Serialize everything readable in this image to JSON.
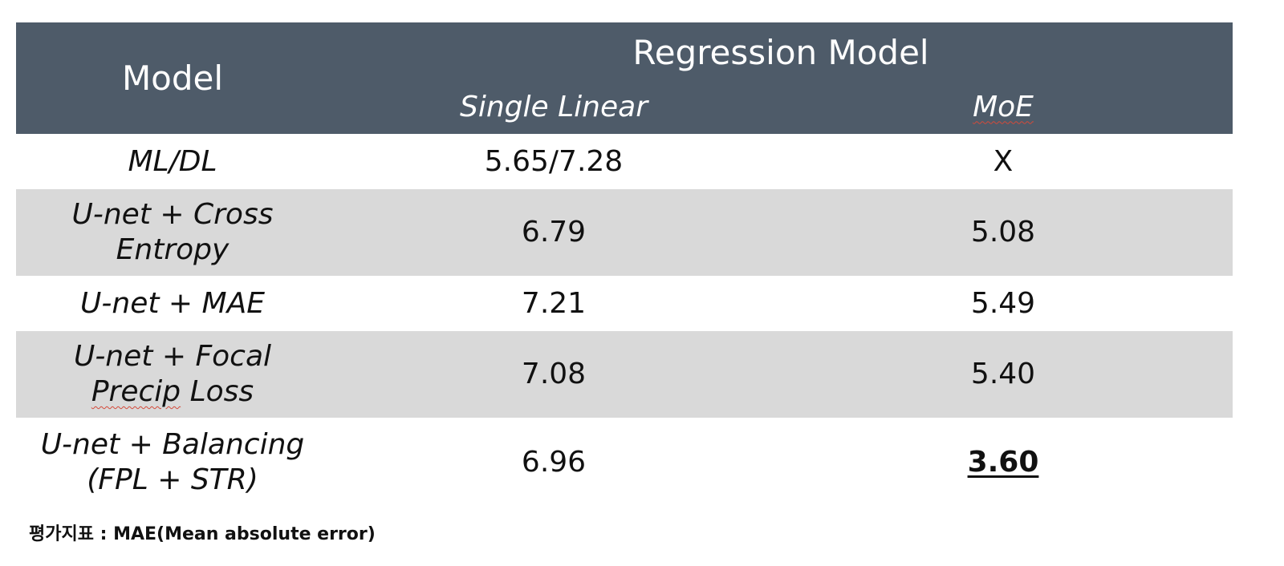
{
  "table": {
    "header": {
      "model_label": "Model",
      "group_label": "Regression Model",
      "sub_single": "Single Linear",
      "sub_moe": "MoE"
    },
    "rows": [
      {
        "model_line1": "ML/DL",
        "model_line2": "",
        "single": "5.65/7.28",
        "moe": "X",
        "shaded": false
      },
      {
        "model_line1": "U-net + Cross",
        "model_line2": "Entropy",
        "single": "6.79",
        "moe": "5.08",
        "shaded": true
      },
      {
        "model_line1": "U-net + MAE",
        "model_line2": "",
        "single": "7.21",
        "moe": "5.49",
        "shaded": false
      },
      {
        "model_line1": "U-net + Focal",
        "model_line2_a": "Precip",
        "model_line2_b": " Loss",
        "single": "7.08",
        "moe": "5.40",
        "shaded": true
      },
      {
        "model_line1": "U-net + Balancing",
        "model_line2": "(FPL + STR)",
        "single": "6.96",
        "moe": "3.60",
        "shaded": false,
        "best": true
      }
    ],
    "colors": {
      "header_bg": "#4e5b69",
      "shaded_row_bg": "#d9d9d9",
      "spellcheck_underline": "#d44a3a"
    }
  },
  "footnote": "평가지표 : MAE(Mean absolute error)"
}
